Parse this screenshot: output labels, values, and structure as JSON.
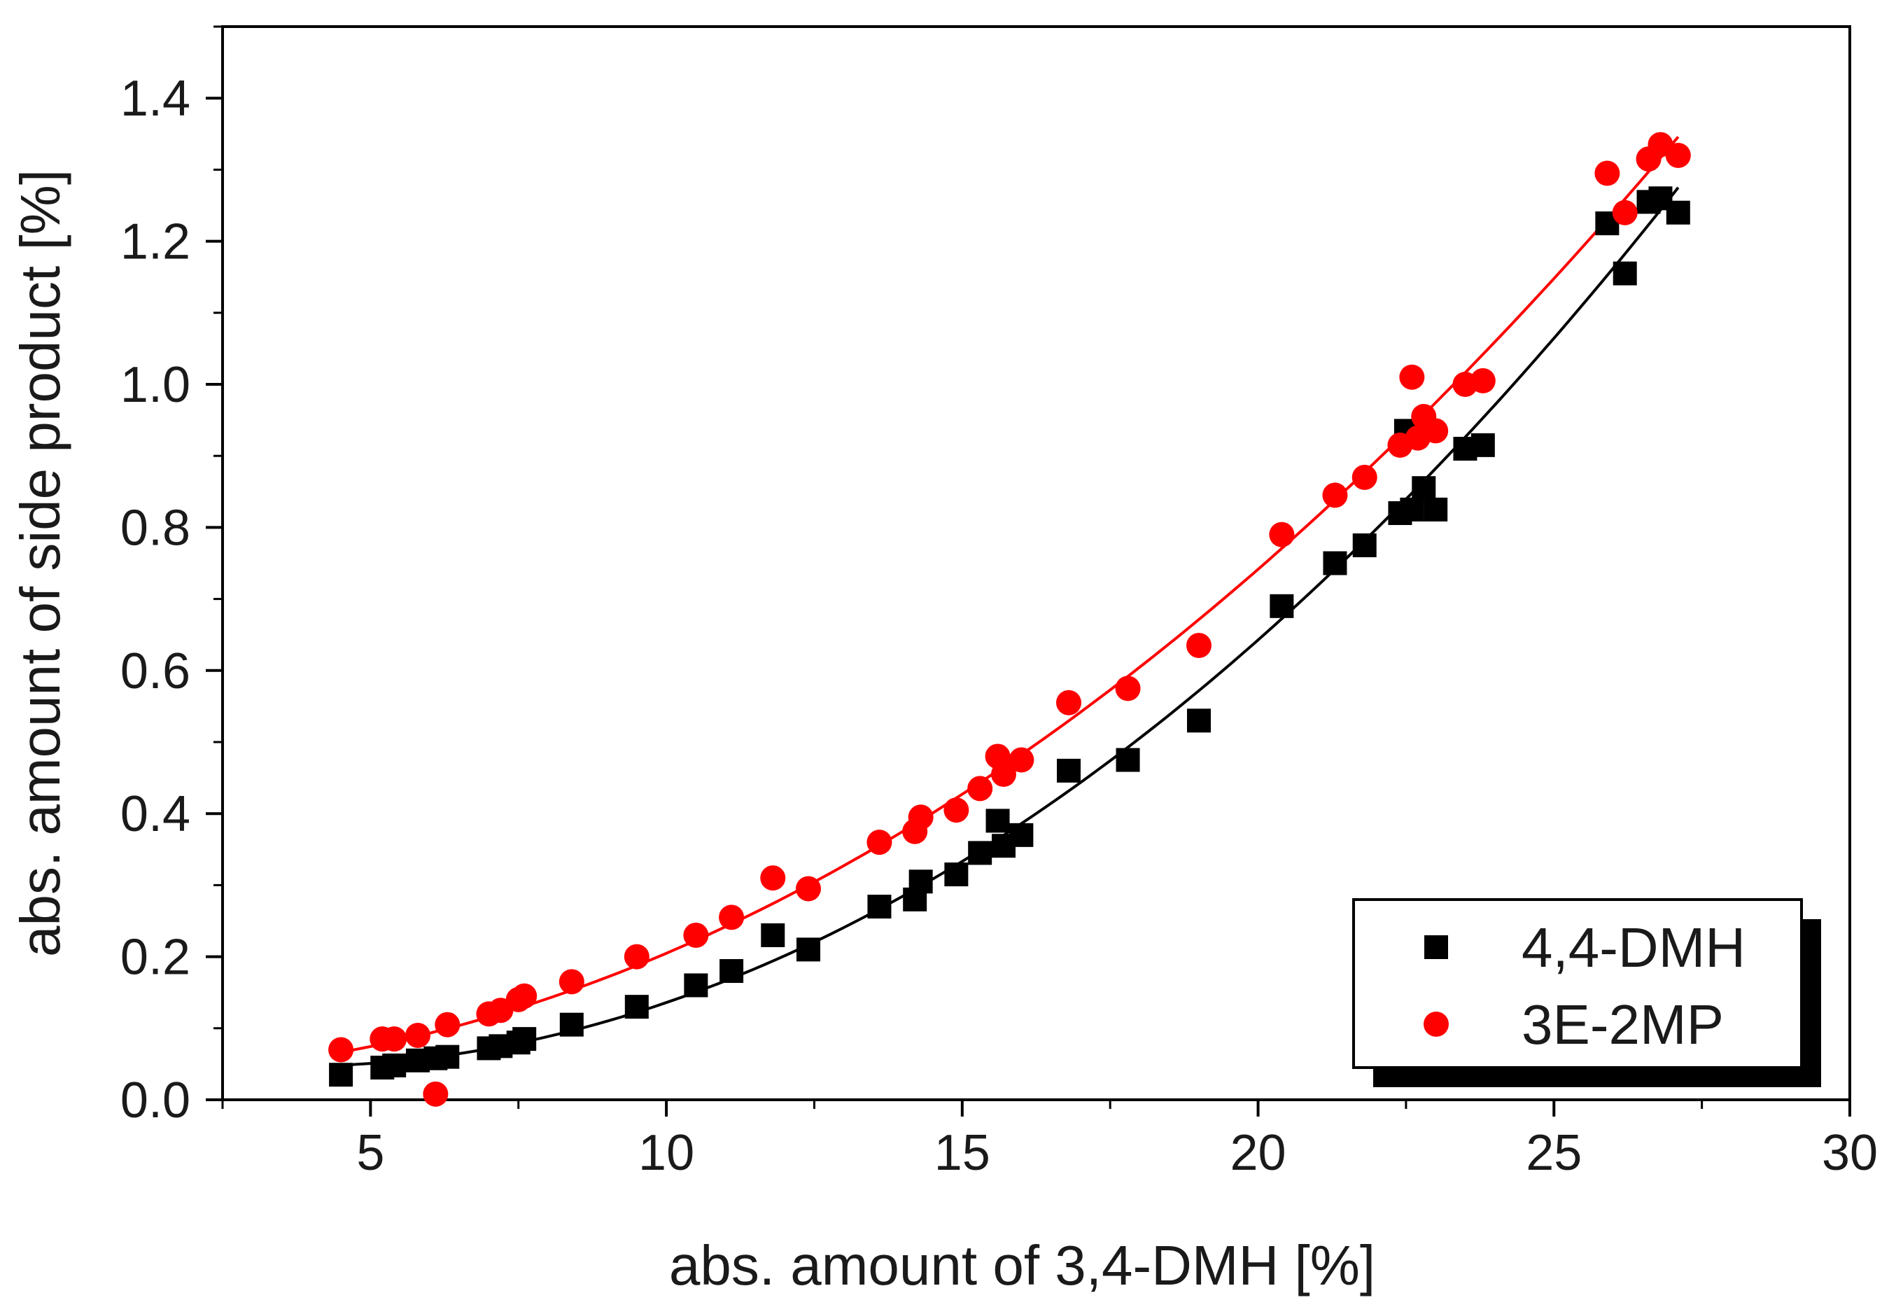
{
  "chart_data": {
    "type": "scatter",
    "title": "",
    "xlabel": "abs. amount of 3,4-DMH [%]",
    "ylabel": "abs. amount of side product [%]",
    "xlim": [
      2.5,
      30
    ],
    "ylim": [
      0,
      1.5
    ],
    "x_ticks": [
      "5",
      "10",
      "15",
      "20",
      "25",
      "30"
    ],
    "y_ticks": [
      "0.0",
      "0.2",
      "0.4",
      "0.6",
      "0.8",
      "1.0",
      "1.2",
      "1.4"
    ],
    "grid": false,
    "legend_position": "bottom-right",
    "series": [
      {
        "name": "4,4-DMH",
        "marker": "square",
        "color": "#000000",
        "fit": "quadratic",
        "points": [
          [
            4.5,
            0.035
          ],
          [
            5.2,
            0.045
          ],
          [
            5.4,
            0.048
          ],
          [
            5.8,
            0.055
          ],
          [
            6.1,
            0.058
          ],
          [
            6.3,
            0.06
          ],
          [
            7.0,
            0.072
          ],
          [
            7.2,
            0.075
          ],
          [
            7.5,
            0.08
          ],
          [
            7.6,
            0.085
          ],
          [
            8.4,
            0.105
          ],
          [
            9.5,
            0.13
          ],
          [
            10.5,
            0.16
          ],
          [
            11.1,
            0.18
          ],
          [
            11.8,
            0.23
          ],
          [
            12.4,
            0.21
          ],
          [
            13.6,
            0.27
          ],
          [
            14.2,
            0.28
          ],
          [
            14.3,
            0.305
          ],
          [
            14.9,
            0.315
          ],
          [
            15.3,
            0.345
          ],
          [
            15.6,
            0.39
          ],
          [
            15.7,
            0.355
          ],
          [
            16.0,
            0.37
          ],
          [
            16.8,
            0.46
          ],
          [
            17.8,
            0.475
          ],
          [
            19.0,
            0.53
          ],
          [
            20.4,
            0.69
          ],
          [
            21.3,
            0.75
          ],
          [
            21.8,
            0.775
          ],
          [
            22.4,
            0.82
          ],
          [
            22.6,
            0.825
          ],
          [
            22.5,
            0.935
          ],
          [
            22.8,
            0.855
          ],
          [
            23.0,
            0.825
          ],
          [
            23.5,
            0.91
          ],
          [
            23.8,
            0.915
          ],
          [
            25.9,
            1.225
          ],
          [
            26.2,
            1.155
          ],
          [
            26.6,
            1.255
          ],
          [
            26.8,
            1.26
          ],
          [
            27.1,
            1.24
          ]
        ]
      },
      {
        "name": "3E-2MP",
        "marker": "circle",
        "color": "#ff0000",
        "fit": "quadratic",
        "points": [
          [
            4.5,
            0.07
          ],
          [
            5.2,
            0.085
          ],
          [
            5.4,
            0.085
          ],
          [
            5.8,
            0.09
          ],
          [
            6.1,
            0.008
          ],
          [
            6.3,
            0.105
          ],
          [
            7.0,
            0.12
          ],
          [
            7.2,
            0.125
          ],
          [
            7.5,
            0.14
          ],
          [
            7.6,
            0.145
          ],
          [
            8.4,
            0.165
          ],
          [
            9.5,
            0.2
          ],
          [
            10.5,
            0.23
          ],
          [
            11.1,
            0.255
          ],
          [
            11.8,
            0.31
          ],
          [
            12.4,
            0.295
          ],
          [
            13.6,
            0.36
          ],
          [
            14.2,
            0.375
          ],
          [
            14.3,
            0.395
          ],
          [
            14.9,
            0.405
          ],
          [
            15.3,
            0.435
          ],
          [
            15.6,
            0.48
          ],
          [
            15.7,
            0.455
          ],
          [
            16.0,
            0.475
          ],
          [
            16.8,
            0.555
          ],
          [
            17.8,
            0.575
          ],
          [
            19.0,
            0.635
          ],
          [
            20.4,
            0.79
          ],
          [
            21.3,
            0.845
          ],
          [
            21.8,
            0.87
          ],
          [
            22.4,
            0.915
          ],
          [
            22.6,
            1.01
          ],
          [
            22.7,
            0.925
          ],
          [
            22.8,
            0.955
          ],
          [
            23.0,
            0.935
          ],
          [
            23.5,
            1.0
          ],
          [
            23.8,
            1.005
          ],
          [
            25.9,
            1.295
          ],
          [
            26.2,
            1.24
          ],
          [
            26.6,
            1.315
          ],
          [
            26.8,
            1.335
          ],
          [
            27.1,
            1.32
          ]
        ]
      }
    ]
  }
}
